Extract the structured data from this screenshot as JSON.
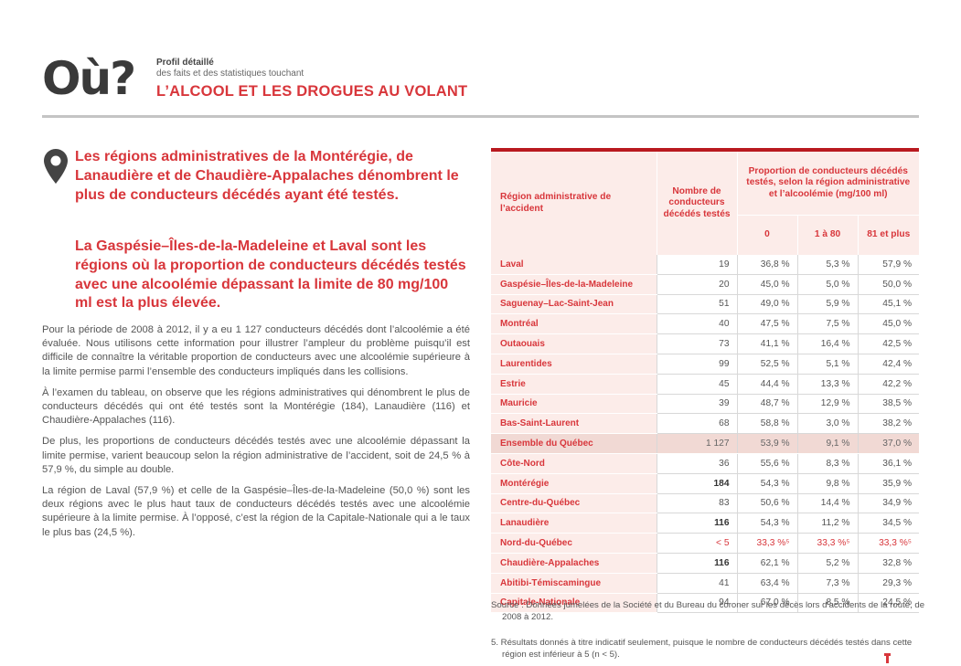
{
  "header": {
    "logo": "Où?",
    "kicker": "Profil détaillé",
    "subtitle": "des faits et des statistiques touchant",
    "headline": "L’ALCOOL ET LES DROGUES AU VOLANT"
  },
  "lead": [
    "Les régions administratives de la Montérégie, de Lanaudière et de Chaudière-Appalaches dénombrent le plus de conducteurs décédés ayant été testés.",
    "La Gaspésie–Îles-de-la-Madeleine et Laval sont les régions où la proportion de conducteurs décédés testés avec une alcoolémie dépassant la limite de 80 mg/100 ml est la plus élevée."
  ],
  "body": [
    "Pour la période de 2008 à 2012, il y a eu 1 127 conducteurs décédés dont l’alcoolémie a été évaluée. Nous utilisons cette information pour illustrer l’ampleur du problème puisqu’il est difficile de connaître la véritable proportion de conducteurs avec une alcoolémie supérieure à la limite permise parmi l’ensemble des conducteurs impliqués dans les collisions.",
    "À l’examen du tableau, on observe que les régions administratives qui dénombrent le plus de conducteurs décédés qui ont été testés sont la Montérégie (184), Lanaudière (116) et Chaudière-Appalaches (116).",
    "De plus, les proportions de conducteurs décédés testés avec une alcoolémie dépassant la limite permise, varient beaucoup selon la région administrative de l’accident, soit de 24,5 % à 57,9 %, du simple au double.",
    "La région de Laval (57,9 %) et celle de la Gaspésie–Îles-de-la-Madeleine (50,0 %) sont les deux régions avec le plus haut taux de conducteurs décédés testés avec une alcoolémie supérieure à la limite permise. À l’opposé, c’est la région de la Capitale-Nationale qui a le taux le plus bas (24,5 %)."
  ],
  "table": {
    "head_region": "Région administrative de l’accident",
    "head_count": "Nombre de conducteurs décédés testés",
    "head_prop": "Proportion de conducteurs décédés testés, selon la région administrative et l’alcoolémie (mg/100 ml)",
    "head_c0": "0",
    "head_c1": "1 à 80",
    "head_c2": "81 et plus",
    "rows": [
      {
        "region": "Laval",
        "count": "19",
        "c0": "36,8 %",
        "c1": "5,3 %",
        "c2": "57,9 %"
      },
      {
        "region": "Gaspésie–Îles-de-la-Madeleine",
        "count": "20",
        "c0": "45,0 %",
        "c1": "5,0 %",
        "c2": "50,0 %"
      },
      {
        "region": "Saguenay–Lac-Saint-Jean",
        "count": "51",
        "c0": "49,0 %",
        "c1": "5,9 %",
        "c2": "45,1 %"
      },
      {
        "region": "Montréal",
        "count": "40",
        "c0": "47,5 %",
        "c1": "7,5 %",
        "c2": "45,0 %"
      },
      {
        "region": "Outaouais",
        "count": "73",
        "c0": "41,1 %",
        "c1": "16,4 %",
        "c2": "42,5 %"
      },
      {
        "region": "Laurentides",
        "count": "99",
        "c0": "52,5 %",
        "c1": "5,1 %",
        "c2": "42,4 %"
      },
      {
        "region": "Estrie",
        "count": "45",
        "c0": "44,4 %",
        "c1": "13,3 %",
        "c2": "42,2 %"
      },
      {
        "region": "Mauricie",
        "count": "39",
        "c0": "48,7 %",
        "c1": "12,9 %",
        "c2": "38,5 %"
      },
      {
        "region": "Bas-Saint-Laurent",
        "count": "68",
        "c0": "58,8 %",
        "c1": "3,0 %",
        "c2": "38,2 %"
      },
      {
        "region": "Ensemble du Québec",
        "count": "1 127",
        "c0": "53,9 %",
        "c1": "9,1 %",
        "c2": "37,0 %",
        "total": true
      },
      {
        "region": "Côte-Nord",
        "count": "36",
        "c0": "55,6 %",
        "c1": "8,3 %",
        "c2": "36,1 %"
      },
      {
        "region": "Montérégie",
        "count": "184",
        "c0": "54,3 %",
        "c1": "9,8 %",
        "c2": "35,9 %",
        "bold_count": true
      },
      {
        "region": "Centre-du-Québec",
        "count": "83",
        "c0": "50,6 %",
        "c1": "14,4 %",
        "c2": "34,9 %"
      },
      {
        "region": "Lanaudière",
        "count": "116",
        "c0": "54,3 %",
        "c1": "11,2 %",
        "c2": "34,5 %",
        "bold_count": true
      },
      {
        "region": "Nord-du-Québec",
        "count": "< 5",
        "c0": "33,3 %⁵",
        "c1": "33,3 %⁵",
        "c2": "33,3 %⁵",
        "flagged": true
      },
      {
        "region": "Chaudière-Appalaches",
        "count": "116",
        "c0": "62,1 %",
        "c1": "5,2 %",
        "c2": "32,8 %",
        "bold_count": true
      },
      {
        "region": "Abitibi-Témiscamingue",
        "count": "41",
        "c0": "63,4 %",
        "c1": "7,3 %",
        "c2": "29,3 %"
      },
      {
        "region": "Capitale-Nationale",
        "count": "94",
        "c0": "67,0 %",
        "c1": "8,5 %",
        "c2": "24,5 %"
      }
    ]
  },
  "source": "Source : Données jumelées de la Société et du Bureau du coroner sur les décès lors d’accidents de la route, de 2008 à 2012.",
  "footnote": "5. Résultats donnés à titre indicatif seulement, puisque le nombre de conducteurs décédés testés dans cette région est inférieur à 5 (n < 5).",
  "colors": {
    "accent": "#d8363b",
    "dark_red": "#b9191f",
    "row_tint": "#fcece9",
    "total_tint": "#f1d9d4",
    "divider": "#c4c4c4"
  },
  "icons": [
    "location-pin-icon",
    "corner-mark-icon"
  ]
}
